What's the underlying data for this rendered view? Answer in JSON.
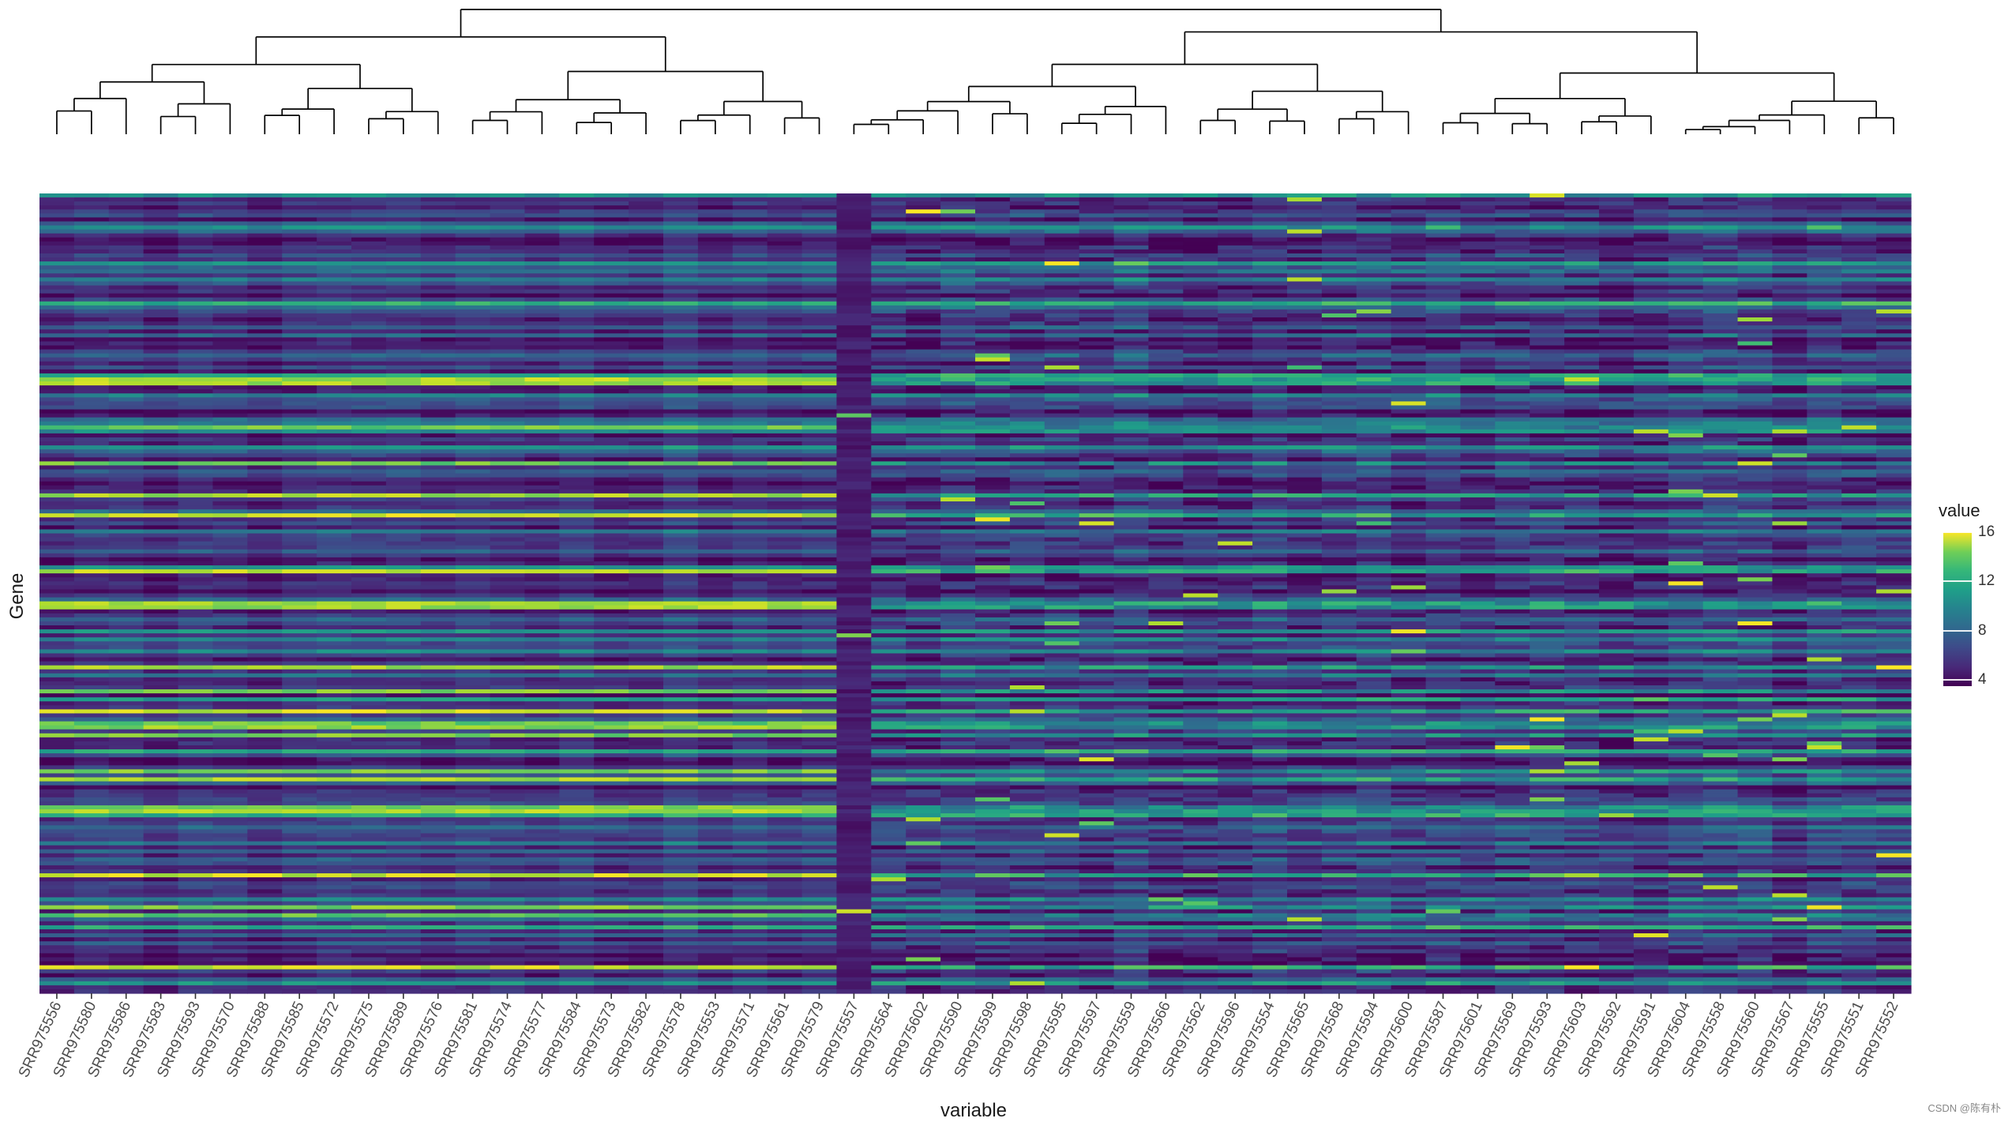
{
  "chart_data": {
    "type": "heatmap",
    "title": "",
    "xlabel": "variable",
    "ylabel": "Gene",
    "legend_title": "value",
    "legend_placement": "right",
    "colorscale": "viridis",
    "color_range": [
      3.5,
      16
    ],
    "legend_ticks": [
      4,
      8,
      12,
      16
    ],
    "colors": {
      "viridis": [
        "#440154",
        "#482878",
        "#3e4a89",
        "#31688e",
        "#26828e",
        "#1f9e89",
        "#35b779",
        "#6ece58",
        "#b5de2b",
        "#fde725"
      ],
      "axis": "#333333",
      "dendrogram": "#000000"
    },
    "n_rows": 200,
    "dendrogram": "top",
    "y_tick_labels": "none",
    "columns": [
      "SRR975556",
      "SRR975580",
      "SRR975586",
      "SRR975583",
      "SRR975593",
      "SRR975570",
      "SRR975588",
      "SRR975585",
      "SRR975572",
      "SRR975575",
      "SRR975589",
      "SRR975576",
      "SRR975581",
      "SRR975574",
      "SRR975577",
      "SRR975584",
      "SRR975573",
      "SRR975582",
      "SRR975578",
      "SRR975553",
      "SRR975571",
      "SRR975561",
      "SRR975579",
      "SRR975557",
      "SRR975564",
      "SRR975602",
      "SRR975590",
      "SRR975599",
      "SRR975598",
      "SRR975595",
      "SRR975597",
      "SRR975559",
      "SRR975566",
      "SRR975562",
      "SRR975596",
      "SRR975554",
      "SRR975565",
      "SRR975568",
      "SRR975594",
      "SRR975600",
      "SRR975587",
      "SRR975601",
      "SRR975569",
      "SRR975593",
      "SRR975603",
      "SRR975592",
      "SRR975591",
      "SRR975604",
      "SRR975558",
      "SRR975560",
      "SRR975567",
      "SRR975555",
      "SRR975551",
      "SRR975552"
    ]
  },
  "watermark": "CSDN @陈有朴"
}
